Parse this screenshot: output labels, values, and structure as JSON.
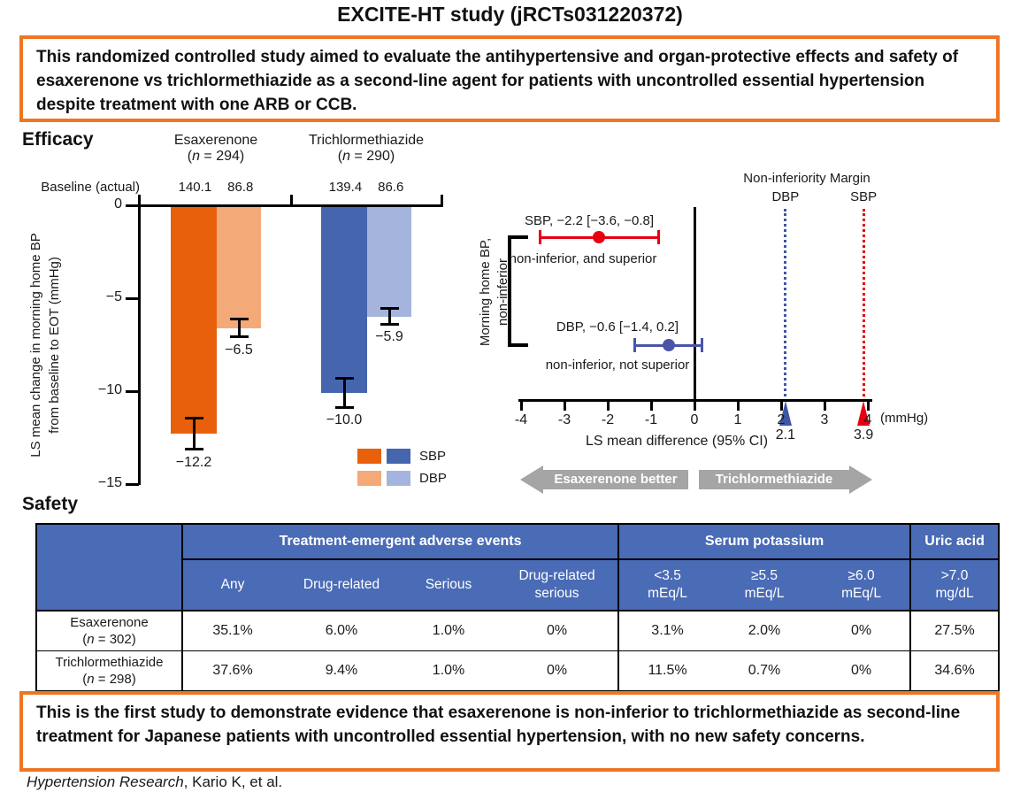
{
  "page": {
    "title": "EXCITE-HT study (jRCTs031220372)"
  },
  "objective": "This randomized controlled study aimed to evaluate the antihypertensive and organ-protective effects and safety of esaxerenone vs trichlormethiazide as a second-line agent for patients with uncontrolled essential hypertension despite treatment with one ARB or CCB.",
  "efficacy": {
    "heading": "Efficacy",
    "baseline_label": "Baseline (actual)",
    "groups": [
      {
        "name": "Esaxerenone",
        "n_open": "(",
        "n": "n",
        "n_rest": " = 294)",
        "baseline_sbp": "140.1",
        "baseline_dbp": "86.8"
      },
      {
        "name": "Trichlormethiazide",
        "n_open": "(",
        "n": "n",
        "n_rest": " = 290)",
        "baseline_sbp": "139.4",
        "baseline_dbp": "86.6"
      }
    ],
    "y_axis_line1": "LS mean change in morning home BP",
    "y_axis_line2": "from baseline to EOT (mmHg)",
    "y_ticks_display": [
      "0",
      "−5",
      "−10",
      "−15"
    ],
    "bar_labels": [
      "−12.2",
      "−6.5",
      "−10.0",
      "−5.9"
    ],
    "legend": {
      "sbp": "SBP",
      "dbp": "DBP"
    }
  },
  "forest": {
    "side_label_line1": "Morning home BP,",
    "side_label_line2": "non-inferior",
    "margin_heading": "Non-inferiority Margin",
    "rows": [
      {
        "label": "SBP, −2.2 [−3.6, −0.8]",
        "sub": "non-inferior, and superior"
      },
      {
        "label": "DBP, −0.6 [−1.4, 0.2]",
        "sub": "non-inferior, not superior"
      }
    ]
  },
  "safety": {
    "heading": "Safety",
    "col_groups": [
      "Treatment-emergent adverse events",
      "Serum potassium",
      "Uric acid"
    ],
    "sub_headers": [
      {
        "l1": "Any",
        "l2": ""
      },
      {
        "l1": "Drug-related",
        "l2": ""
      },
      {
        "l1": "Serious",
        "l2": ""
      },
      {
        "l1": "Drug-related",
        "l2": "serious"
      },
      {
        "l1": "<3.5",
        "l2": "mEq/L"
      },
      {
        "l1": "≥5.5",
        "l2": "mEq/L"
      },
      {
        "l1": "≥6.0",
        "l2": "mEq/L"
      },
      {
        "l1": ">7.0",
        "l2": "mg/dL"
      }
    ],
    "rows": [
      {
        "name": "Esaxerenone",
        "n_open": "(",
        "n": "n",
        "n_rest": " = 302)",
        "values": [
          "35.1%",
          "6.0%",
          "1.0%",
          "0%",
          "3.1%",
          "2.0%",
          "0%",
          "27.5%"
        ]
      },
      {
        "name": "Trichlormethiazide",
        "n_open": "(",
        "n": "n",
        "n_rest": " = 298)",
        "values": [
          "37.6%",
          "9.4%",
          "1.0%",
          "0%",
          "11.5%",
          "0.7%",
          "0%",
          "34.6%"
        ]
      }
    ]
  },
  "conclusion": "This is the first study to demonstrate evidence that esaxerenone is non-inferior to trichlormethiazide as second-line treatment for Japanese patients with uncontrolled essential hypertension, with no new safety concerns.",
  "citation": {
    "journal": "Hypertension Research",
    "rest": ", Kario K, et al."
  },
  "colors": {
    "accent_orange_border": "#EE7623",
    "bar_sbp_esaxerenone": "#E8600C",
    "bar_dbp_esaxerenone": "#F4A978",
    "bar_sbp_trichlormethiazide": "#4566AE",
    "bar_dbp_trichlormethiazide": "#A5B4DC",
    "forest_sbp_red": "#E60012",
    "forest_dbp_blue": "#4A55A8",
    "margin_dotted_blue": "#3D56A6",
    "arrow_gray": "#A5A5A5",
    "table_header_blue": "#4A6BB5"
  },
  "chart_data": [
    {
      "type": "bar",
      "title": "Efficacy: LS mean change in morning home BP from baseline to EOT",
      "categories": [
        "Esaxerenone (n = 294)",
        "Trichlormethiazide (n = 290)"
      ],
      "series": [
        {
          "name": "SBP",
          "values": [
            -12.2,
            -10.0
          ],
          "err": [
            0.9,
            0.85
          ]
        },
        {
          "name": "DBP",
          "values": [
            -6.5,
            -5.9
          ],
          "err": [
            0.55,
            0.5
          ]
        }
      ],
      "baseline_actual": {
        "esaxerenone": {
          "sbp": 140.1,
          "dbp": 86.8
        },
        "trichlormethiazide": {
          "sbp": 139.4,
          "dbp": 86.6
        }
      },
      "xlabel": "",
      "ylabel": "LS mean change in morning home BP from baseline to EOT (mmHg)",
      "ylim": [
        -15,
        0
      ],
      "y_ticks": [
        0,
        -5,
        -10,
        -15
      ],
      "legend_position": "lower right",
      "grid": false
    },
    {
      "type": "scatter",
      "subtype": "forest",
      "points": [
        {
          "name": "SBP",
          "est": -2.2,
          "lo": -3.6,
          "hi": -0.8,
          "result": "non-inferior, and superior"
        },
        {
          "name": "DBP",
          "est": -0.6,
          "lo": -1.4,
          "hi": 0.2,
          "result": "non-inferior, not superior"
        }
      ],
      "margins": [
        {
          "name": "DBP",
          "value": 2.1
        },
        {
          "name": "SBP",
          "value": 3.9
        }
      ],
      "x_ticks": [
        -4,
        -3,
        -2,
        -1,
        0,
        1,
        2,
        3,
        4
      ],
      "xlim": [
        -4,
        4
      ],
      "unit": "(mmHg)",
      "xlabel": "LS mean difference (95% CI)",
      "direction_left": "Esaxerenone better",
      "direction_right": "Trichlormethiazide better",
      "grid": false
    },
    {
      "type": "table",
      "title": "Safety",
      "column_groups": [
        "Treatment-emergent adverse events",
        "Serum potassium",
        "Uric acid"
      ],
      "columns": [
        "Any",
        "Drug-related",
        "Serious",
        "Drug-related serious",
        "<3.5 mEq/L",
        "≥5.5 mEq/L",
        "≥6.0 mEq/L",
        ">7.0 mg/dL"
      ],
      "rows": [
        {
          "name": "Esaxerenone (n = 302)",
          "values": [
            "35.1%",
            "6.0%",
            "1.0%",
            "0%",
            "3.1%",
            "2.0%",
            "0%",
            "27.5%"
          ]
        },
        {
          "name": "Trichlormethiazide (n = 298)",
          "values": [
            "37.6%",
            "9.4%",
            "1.0%",
            "0%",
            "11.5%",
            "0.7%",
            "0%",
            "34.6%"
          ]
        }
      ]
    }
  ]
}
